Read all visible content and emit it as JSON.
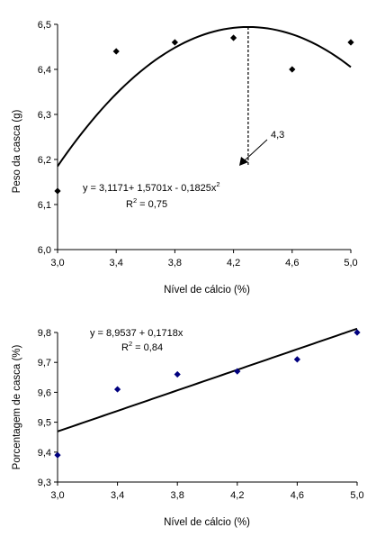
{
  "chart_data": [
    {
      "type": "scatter",
      "xlabel": "Nível de cálcio (%)",
      "ylabel": "Peso da casca (g)",
      "xlim": [
        3.0,
        5.0
      ],
      "ylim": [
        6.0,
        6.5
      ],
      "xticks": [
        "3,0",
        "3,4",
        "3,8",
        "4,2",
        "4,6",
        "5,0"
      ],
      "xtick_values": [
        3.0,
        3.4,
        3.8,
        4.2,
        4.6,
        5.0
      ],
      "yticks": [
        "6,0",
        "6,1",
        "6,2",
        "6,3",
        "6,4",
        "6,5"
      ],
      "ytick_values": [
        6.0,
        6.1,
        6.2,
        6.3,
        6.4,
        6.5
      ],
      "points": [
        {
          "x": 3.0,
          "y": 6.13
        },
        {
          "x": 3.4,
          "y": 6.44
        },
        {
          "x": 3.8,
          "y": 6.46
        },
        {
          "x": 4.2,
          "y": 6.47
        },
        {
          "x": 4.6,
          "y": 6.4
        },
        {
          "x": 5.0,
          "y": 6.46
        }
      ],
      "marker_color": "#000000",
      "fit": {
        "kind": "quadratic",
        "a": 3.1171,
        "b": 1.5701,
        "c": -0.1825,
        "x_range": [
          3.0,
          5.0
        ]
      },
      "equation": "y = 3,1171+ 1,5701x - 0,1825x",
      "equation_exp": "2",
      "r2": "R",
      "r2_exp": "2",
      "r2_value": " = 0,75",
      "optimum_x": 4.3,
      "optimum_label": "4,3",
      "grid": false
    },
    {
      "type": "scatter",
      "xlabel": "Nível de cálcio (%)",
      "ylabel": "Porcentagem de casca (%)",
      "xlim": [
        3.0,
        5.0
      ],
      "ylim": [
        9.3,
        9.8
      ],
      "xticks": [
        "3,0",
        "3,4",
        "3,8",
        "4,2",
        "4,6",
        "5,0"
      ],
      "xtick_values": [
        3.0,
        3.4,
        3.8,
        4.2,
        4.6,
        5.0
      ],
      "yticks": [
        "9,3",
        "9,4",
        "9,5",
        "9,6",
        "9,7",
        "9,8"
      ],
      "ytick_values": [
        9.3,
        9.4,
        9.5,
        9.6,
        9.7,
        9.8
      ],
      "points": [
        {
          "x": 3.0,
          "y": 9.39
        },
        {
          "x": 3.4,
          "y": 9.61
        },
        {
          "x": 3.8,
          "y": 9.66
        },
        {
          "x": 4.2,
          "y": 9.67
        },
        {
          "x": 4.6,
          "y": 9.71
        },
        {
          "x": 5.0,
          "y": 9.8
        }
      ],
      "marker_color": "#00007f",
      "fit": {
        "kind": "linear",
        "a": 8.9537,
        "b": 0.1718,
        "x_range": [
          3.0,
          5.0
        ]
      },
      "equation": "y = 8,9537 + 0,1718x",
      "r2": "R",
      "r2_exp": "2",
      "r2_value": " = 0,84",
      "grid": false
    }
  ]
}
